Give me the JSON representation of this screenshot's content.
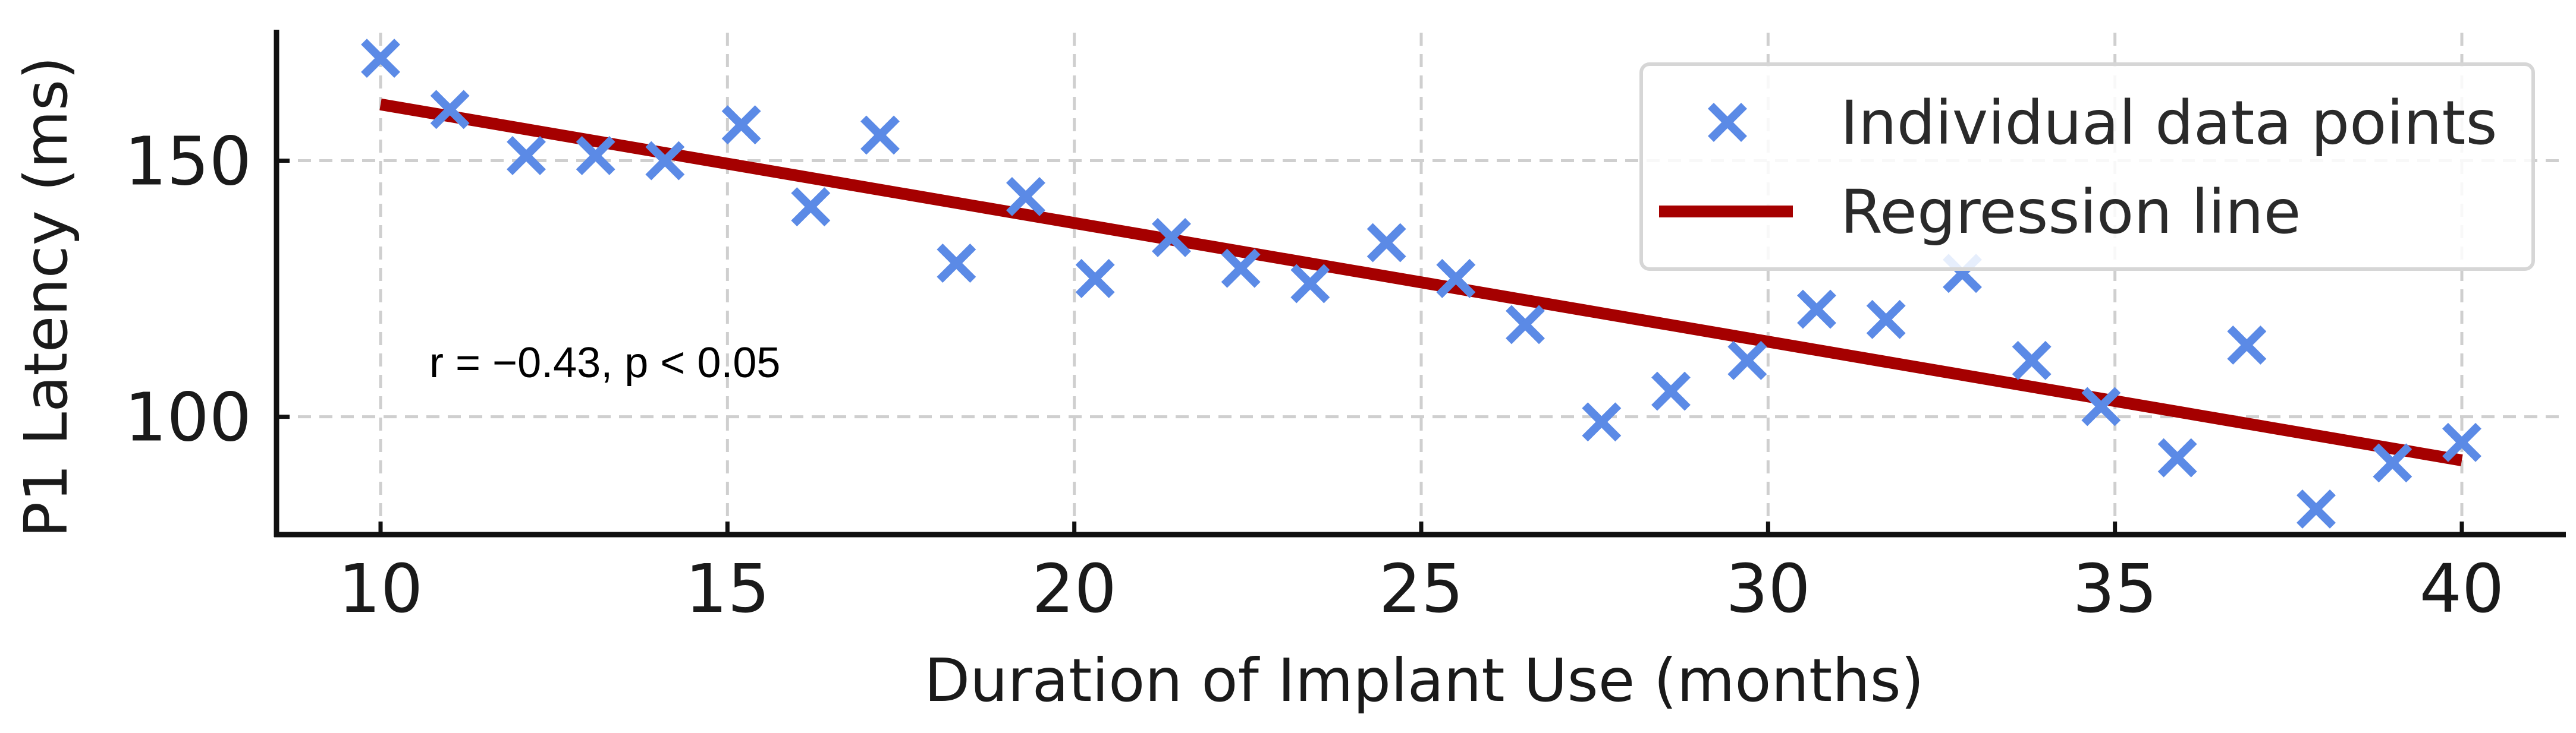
{
  "chart_data": {
    "type": "scatter",
    "xlabel": "Duration of Implant Use (months)",
    "ylabel": "P1 Latency (ms)",
    "xlim": [
      8.5,
      41.5
    ],
    "ylim": [
      77,
      175
    ],
    "x_ticks": [
      10,
      15,
      20,
      25,
      30,
      35,
      40
    ],
    "y_ticks": [
      100,
      150
    ],
    "grid": true,
    "legend_position": "top-right",
    "annotation": "r = −0.43, p < 0.05",
    "series": [
      {
        "name": "Individual data points",
        "kind": "scatter",
        "marker": "x",
        "color": "#5b8ae6",
        "points": [
          [
            10.0,
            170
          ],
          [
            11.0,
            160
          ],
          [
            12.1,
            151
          ],
          [
            13.1,
            151
          ],
          [
            14.1,
            150
          ],
          [
            15.2,
            157
          ],
          [
            16.2,
            141
          ],
          [
            17.2,
            155
          ],
          [
            18.3,
            130
          ],
          [
            19.3,
            143
          ],
          [
            20.3,
            127
          ],
          [
            21.4,
            135
          ],
          [
            22.4,
            129
          ],
          [
            23.4,
            126
          ],
          [
            24.5,
            134
          ],
          [
            25.5,
            127
          ],
          [
            26.5,
            118
          ],
          [
            27.6,
            99
          ],
          [
            28.6,
            105
          ],
          [
            29.7,
            111
          ],
          [
            30.7,
            121
          ],
          [
            31.7,
            119
          ],
          [
            32.8,
            128
          ],
          [
            33.8,
            111
          ],
          [
            34.8,
            102
          ],
          [
            35.9,
            92
          ],
          [
            36.9,
            114
          ],
          [
            37.9,
            82
          ],
          [
            39.0,
            91
          ],
          [
            40.0,
            95
          ]
        ]
      },
      {
        "name": "Regression line",
        "kind": "line",
        "color": "#a50000",
        "points": [
          [
            10,
            161
          ],
          [
            40,
            91.5
          ]
        ]
      }
    ]
  }
}
